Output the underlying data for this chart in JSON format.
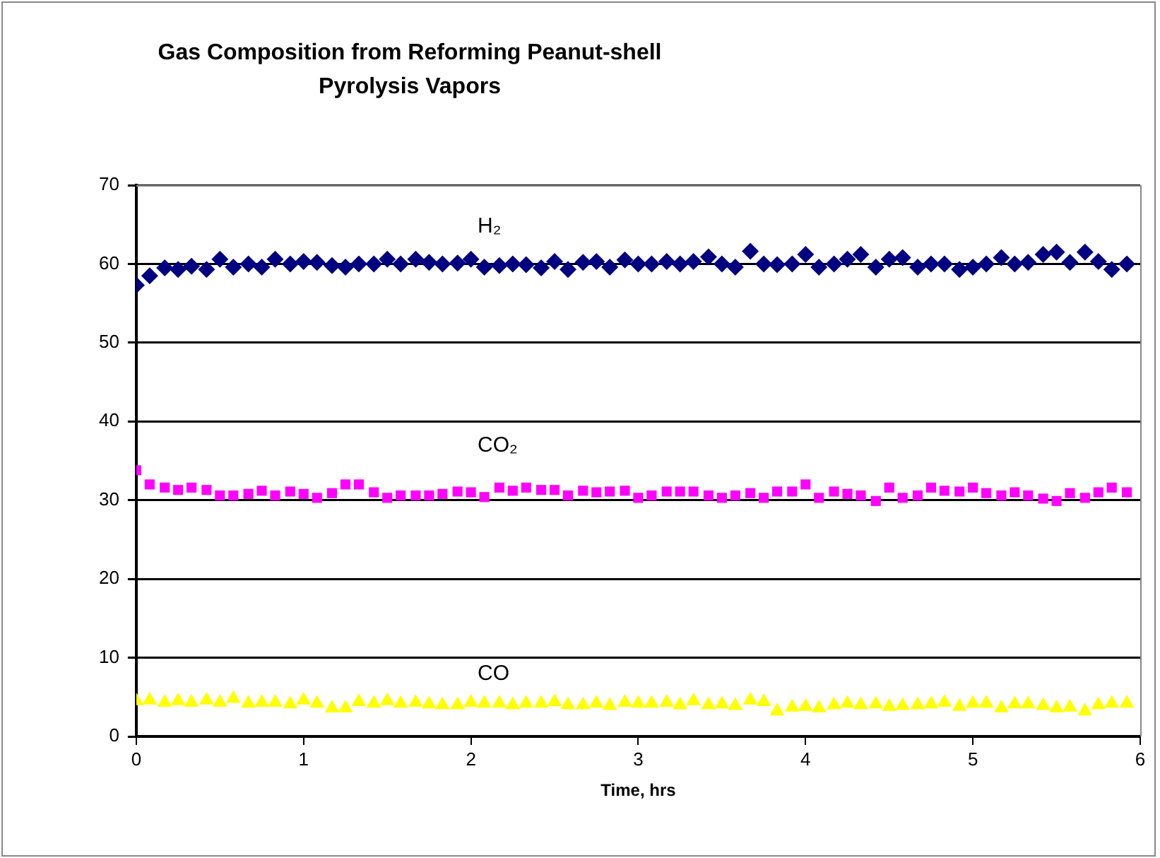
{
  "chart_data": {
    "type": "scatter",
    "title": "Gas Composition from Reforming Peanut-shell Pyrolysis Vapors",
    "xlabel": "Time, hrs",
    "x": [
      0,
      0.08,
      0.17,
      0.25,
      0.33,
      0.42,
      0.5,
      0.58,
      0.67,
      0.75,
      0.83,
      0.92,
      1,
      1.08,
      1.17,
      1.25,
      1.33,
      1.42,
      1.5,
      1.58,
      1.67,
      1.75,
      1.83,
      1.92,
      2,
      2.08,
      2.17,
      2.25,
      2.33,
      2.42,
      2.5,
      2.58,
      2.67,
      2.75,
      2.83,
      2.92,
      3,
      3.08,
      3.17,
      3.25,
      3.33,
      3.42,
      3.5,
      3.58,
      3.67,
      3.75,
      3.83,
      3.92,
      4,
      4.08,
      4.17,
      4.25,
      4.33,
      4.42,
      4.5,
      4.58,
      4.67,
      4.75,
      4.83,
      4.92,
      5,
      5.08,
      5.17,
      5.25,
      5.33,
      5.42,
      5.5,
      5.58,
      5.67,
      5.75,
      5.83,
      5.92
    ],
    "series": [
      {
        "name": "H₂",
        "color": "#000080",
        "marker": "diamond",
        "values": [
          57.3,
          58.5,
          59.5,
          59.3,
          59.7,
          59.3,
          60.6,
          59.6,
          60.0,
          59.6,
          60.6,
          60.0,
          60.3,
          60.2,
          59.8,
          59.6,
          60.0,
          60.0,
          60.6,
          60.0,
          60.6,
          60.2,
          60.0,
          60.1,
          60.6,
          59.6,
          59.8,
          60.0,
          59.9,
          59.5,
          60.3,
          59.3,
          60.2,
          60.3,
          59.6,
          60.5,
          60.0,
          60.0,
          60.3,
          60.0,
          60.3,
          60.9,
          60.0,
          59.6,
          61.6,
          60.0,
          59.9,
          60.0,
          61.2,
          59.6,
          60.0,
          60.6,
          61.2,
          59.6,
          60.6,
          60.8,
          59.6,
          60.0,
          60.0,
          59.3,
          59.6,
          60.0,
          60.8,
          60.0,
          60.2,
          61.2,
          61.5,
          60.2,
          61.5,
          60.3,
          59.3,
          60.0
        ]
      },
      {
        "name": "CO₂",
        "color": "#ff00ff",
        "marker": "square",
        "values": [
          33.8,
          32.0,
          31.6,
          31.3,
          31.6,
          31.3,
          30.6,
          30.6,
          30.8,
          31.2,
          30.6,
          31.1,
          30.8,
          30.3,
          30.9,
          32.0,
          32.0,
          31.0,
          30.3,
          30.6,
          30.6,
          30.6,
          30.8,
          31.1,
          31.0,
          30.4,
          31.6,
          31.2,
          31.6,
          31.3,
          31.3,
          30.6,
          31.2,
          31.0,
          31.1,
          31.2,
          30.3,
          30.6,
          31.1,
          31.1,
          31.1,
          30.6,
          30.3,
          30.6,
          30.9,
          30.3,
          31.1,
          31.1,
          32.0,
          30.3,
          31.1,
          30.8,
          30.6,
          29.9,
          31.6,
          30.3,
          30.6,
          31.6,
          31.2,
          31.1,
          31.6,
          30.9,
          30.6,
          31.0,
          30.6,
          30.2,
          29.9,
          30.9,
          30.3,
          31.0,
          31.6,
          31.0
        ]
      },
      {
        "name": "CO",
        "color": "#ffff00",
        "marker": "triangle",
        "values": [
          4.5,
          4.6,
          4.3,
          4.5,
          4.3,
          4.6,
          4.3,
          4.8,
          4.2,
          4.3,
          4.3,
          4.1,
          4.6,
          4.2,
          3.6,
          3.6,
          4.4,
          4.2,
          4.5,
          4.2,
          4.3,
          4.1,
          4.0,
          4.0,
          4.3,
          4.2,
          4.2,
          4.0,
          4.2,
          4.2,
          4.4,
          4.0,
          4.0,
          4.2,
          3.9,
          4.3,
          4.2,
          4.2,
          4.3,
          4.0,
          4.5,
          4.0,
          4.1,
          3.9,
          4.6,
          4.4,
          3.2,
          3.7,
          3.8,
          3.6,
          4.0,
          4.2,
          4.0,
          4.1,
          3.8,
          3.9,
          4.0,
          4.1,
          4.3,
          3.8,
          4.2,
          4.2,
          3.6,
          4.1,
          4.1,
          3.9,
          3.6,
          3.7,
          3.2,
          4.0,
          4.2,
          4.2
        ]
      }
    ],
    "xlim": [
      0,
      6
    ],
    "xticks": [
      0,
      1,
      2,
      3,
      4,
      5,
      6
    ],
    "ylim": [
      0,
      70
    ],
    "yticks": [
      0,
      10,
      20,
      30,
      40,
      50,
      60,
      70
    ],
    "grid": "y",
    "legend": false
  }
}
